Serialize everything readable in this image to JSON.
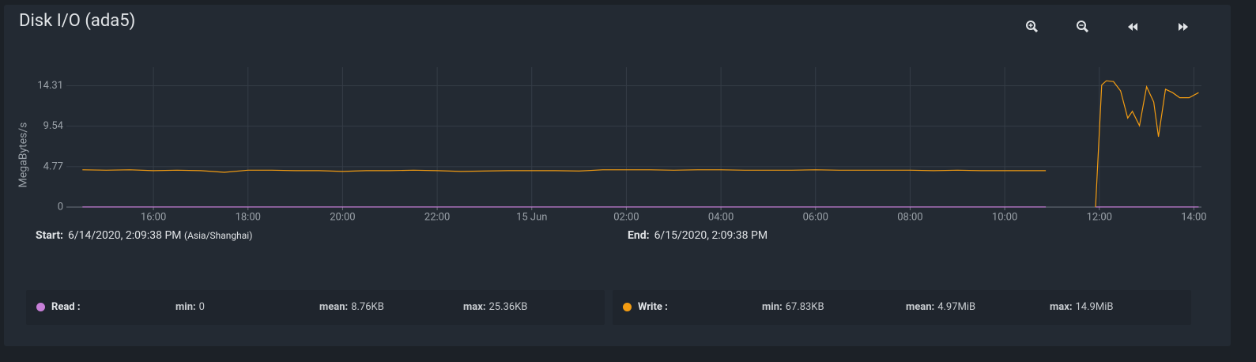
{
  "chart_data": {
    "type": "line",
    "title": "Disk I/O (ada5)",
    "y_label": "MegaBytes/s",
    "x": [
      14.5,
      15,
      15.5,
      16,
      16.5,
      17,
      17.5,
      18,
      18.5,
      19,
      19.5,
      20,
      20.5,
      21,
      21.5,
      22,
      22.5,
      23,
      23.5,
      24,
      24.5,
      25,
      25.5,
      26,
      26.5,
      27,
      27.5,
      28,
      28.5,
      29,
      29.5,
      30,
      30.5,
      31,
      31.5,
      32,
      32.5,
      33,
      33.5,
      34,
      34.5,
      34.87,
      35.4,
      35.92,
      36.05,
      36.15,
      36.3,
      36.45,
      36.6,
      36.7,
      36.85,
      37.0,
      37.15,
      37.25,
      37.4,
      37.55,
      37.7,
      37.9,
      38.1
    ],
    "series": [
      {
        "name": "Read :",
        "color": "#c77fd8",
        "stats": [
          {
            "label": "min:",
            "value": "0"
          },
          {
            "label": "mean:",
            "value": "8.76KB"
          },
          {
            "label": "max:",
            "value": "25.36KB"
          }
        ],
        "values": [
          0.01,
          0.01,
          0.01,
          0.01,
          0.01,
          0.01,
          0.01,
          0.01,
          0.01,
          0.01,
          0.01,
          0.01,
          0.01,
          0.01,
          0.01,
          0.01,
          0.01,
          0.01,
          0.01,
          0.01,
          0.01,
          0.01,
          0.01,
          0.01,
          0.01,
          0.01,
          0.01,
          0.01,
          0.01,
          0.01,
          0.01,
          0.01,
          0.01,
          0.01,
          0.01,
          0.01,
          0.01,
          0.01,
          0.01,
          0.01,
          0.01,
          0.01,
          null,
          0.01,
          0.01,
          0.01,
          0.01,
          0.01,
          0.01,
          0.01,
          0.01,
          0.01,
          0.01,
          0.01,
          0.01,
          0.01,
          0.01,
          0.01,
          0.01
        ]
      },
      {
        "name": "Write :",
        "color": "#f39c12",
        "stats": [
          {
            "label": "min:",
            "value": "67.83KB"
          },
          {
            "label": "mean:",
            "value": "4.97MiB"
          },
          {
            "label": "max:",
            "value": "14.9MiB"
          }
        ],
        "values": [
          4.4,
          4.35,
          4.4,
          4.3,
          4.35,
          4.3,
          4.1,
          4.35,
          4.35,
          4.3,
          4.3,
          4.2,
          4.3,
          4.3,
          4.35,
          4.3,
          4.2,
          4.25,
          4.3,
          4.3,
          4.3,
          4.25,
          4.4,
          4.4,
          4.4,
          4.35,
          4.4,
          4.4,
          4.35,
          4.35,
          4.35,
          4.4,
          4.35,
          4.35,
          4.35,
          4.35,
          4.3,
          4.35,
          4.3,
          4.3,
          4.3,
          4.3,
          null,
          0,
          14.4,
          14.9,
          14.8,
          13.7,
          10.5,
          11.3,
          9.6,
          14.2,
          12.4,
          8.3,
          13.9,
          13.5,
          12.9,
          12.9,
          13.5
        ]
      }
    ],
    "xlim": [
      14.16,
      38.16
    ],
    "xticks": [
      {
        "value": 16,
        "label": "16:00"
      },
      {
        "value": 18,
        "label": "18:00"
      },
      {
        "value": 20,
        "label": "20:00"
      },
      {
        "value": 22,
        "label": "22:00"
      },
      {
        "value": 24,
        "label": "15 Jun"
      },
      {
        "value": 26,
        "label": "02:00"
      },
      {
        "value": 28,
        "label": "04:00"
      },
      {
        "value": 30,
        "label": "06:00"
      },
      {
        "value": 32,
        "label": "08:00"
      },
      {
        "value": 34,
        "label": "10:00"
      },
      {
        "value": 36,
        "label": "12:00"
      },
      {
        "value": 38,
        "label": "14:00"
      }
    ],
    "ylim": [
      0,
      16.5
    ],
    "yticks": [
      0,
      4.77,
      9.54,
      14.31
    ],
    "grid": true,
    "range": {
      "start_label": "Start:",
      "start": "6/14/2020, 2:09:38 PM",
      "timezone": "(Asia/Shanghai)",
      "end_label": "End:",
      "end": "6/15/2020, 2:09:38 PM"
    }
  }
}
